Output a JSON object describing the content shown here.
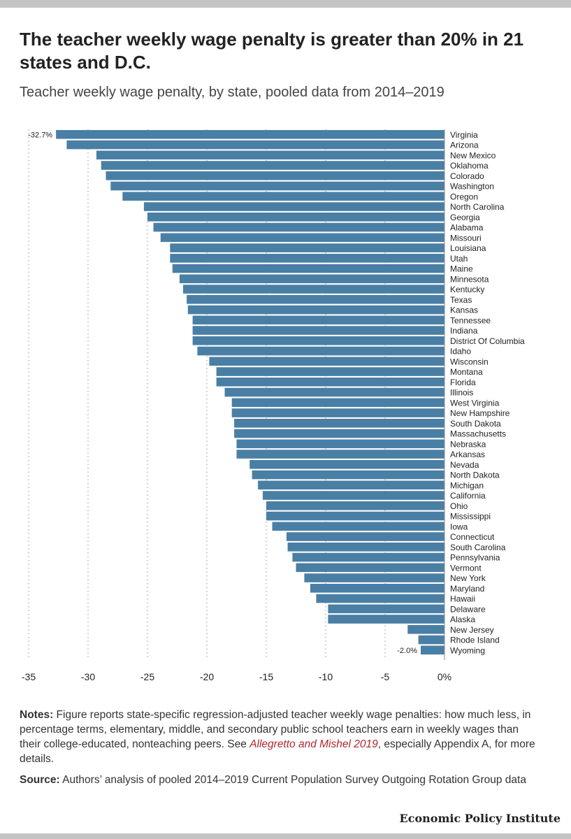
{
  "title": "The teacher weekly wage penalty is greater than 20% in 21 states and D.C.",
  "subtitle": "Teacher weekly wage penalty, by state, pooled data from 2014–2019",
  "chart_data": {
    "type": "bar",
    "orientation": "horizontal",
    "categories": [
      "Virginia",
      "Arizona",
      "New Mexico",
      "Oklahoma",
      "Colorado",
      "Washington",
      "Oregon",
      "North Carolina",
      "Georgia",
      "Alabama",
      "Missouri",
      "Louisiana",
      "Utah",
      "Maine",
      "Minnesota",
      "Kentucky",
      "Texas",
      "Kansas",
      "Tennessee",
      "Indiana",
      "District Of Columbia",
      "Idaho",
      "Wisconsin",
      "Montana",
      "Florida",
      "Illinois",
      "West Virginia",
      "New Hampshire",
      "South Dakota",
      "Massachusetts",
      "Nebraska",
      "Arkansas",
      "Nevada",
      "North Dakota",
      "Michigan",
      "California",
      "Ohio",
      "Mississippi",
      "Iowa",
      "Connecticut",
      "South Carolina",
      "Pennsylvania",
      "Vermont",
      "New York",
      "Maryland",
      "Hawaii",
      "Delaware",
      "Alaska",
      "New Jersey",
      "Rhode Island",
      "Wyoming"
    ],
    "values": [
      -32.7,
      -31.8,
      -29.3,
      -28.9,
      -28.5,
      -28.1,
      -27.1,
      -25.3,
      -25.0,
      -24.5,
      -23.9,
      -23.1,
      -23.1,
      -22.9,
      -22.3,
      -22.0,
      -21.7,
      -21.6,
      -21.2,
      -21.2,
      -21.2,
      -20.8,
      -19.8,
      -19.2,
      -19.2,
      -18.5,
      -17.9,
      -17.9,
      -17.7,
      -17.7,
      -17.5,
      -17.5,
      -16.4,
      -16.2,
      -15.7,
      -15.3,
      -15.0,
      -15.0,
      -14.5,
      -13.3,
      -13.2,
      -12.8,
      -12.5,
      -11.8,
      -11.3,
      -10.8,
      -9.8,
      -9.8,
      -3.1,
      -2.2,
      -2.0
    ],
    "data_labels": {
      "first": "-32.7%",
      "last": "-2.0%"
    },
    "xticks": [
      "-35",
      "-30",
      "-25",
      "-20",
      "-15",
      "-10",
      "-5",
      "0%"
    ],
    "xlim": [
      -35,
      0
    ],
    "grid": "vertical dotted",
    "bar_color": "#4a7fa5",
    "xlabel": "",
    "ylabel": ""
  },
  "notes": {
    "label": "Notes:",
    "text_before": "Figure reports state-specific regression-adjusted teacher weekly wage penalties: how much less, in percentage terms, elementary, middle, and secondary public school teachers earn in weekly wages than their college-educated, nonteaching peers. See",
    "link_text": "Allegretto and Mishel 2019",
    "text_after": ", especially Appendix A, for more details."
  },
  "source": {
    "label": "Source:",
    "text": "Authors’ analysis of pooled 2014–2019 Current Population Survey Outgoing Rotation Group data"
  },
  "brand": "Economic Policy Institute",
  "colors": {
    "bar": "#4a7fa5",
    "link": "#b3282d",
    "frame": "#c4c4c4"
  }
}
